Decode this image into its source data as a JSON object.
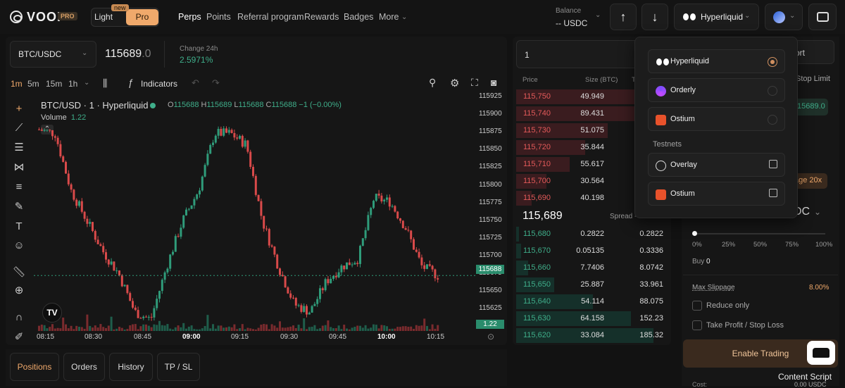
{
  "header": {
    "logo": "VOOI",
    "logo_badge": "PRO",
    "mode_light": "Light",
    "mode_pro": "Pro",
    "new_tag": "new",
    "nav": [
      "Perps",
      "Points",
      "Referral program",
      "Rewards",
      "Badges",
      "More"
    ],
    "balance_label": "Balance",
    "balance_value": "-- USDC",
    "network": "Hyperliquid"
  },
  "market": {
    "pair": "BTC/USDC",
    "price_main": "115689",
    "price_dec": ".0",
    "change_label": "Change 24h",
    "change_value": "2.5971%"
  },
  "toolbar": {
    "timeframes": [
      "1m",
      "5m",
      "15m",
      "1h"
    ],
    "indicators": "Indicators"
  },
  "chart": {
    "title": "BTC/USD · 1 · Hyperliquid",
    "o": "115688",
    "h": "115689",
    "l": "115688",
    "c": "115688",
    "change": "−1 (−0.00%)",
    "volume_label": "Volume",
    "volume_value": "1.22",
    "price_tag": "115688",
    "vol_tag": "1.22"
  },
  "chart_data": {
    "type": "candlestick",
    "title": "BTC/USD · 1 · Hyperliquid",
    "yticks": [
      "115925",
      "115900",
      "115875",
      "115850",
      "115825",
      "115800",
      "115775",
      "115750",
      "115725",
      "115700",
      "115675",
      "115650",
      "115625"
    ],
    "xticks": [
      "08:15",
      "08:30",
      "08:45",
      "09:00",
      "09:15",
      "09:30",
      "09:45",
      "10:00",
      "10:15"
    ],
    "close_series": [
      115880,
      115875,
      115800,
      115760,
      115720,
      115690,
      115640,
      115630,
      115700,
      115760,
      115800,
      115875,
      115875,
      115860,
      115760,
      115700,
      115650,
      115640,
      115680,
      115700,
      115710,
      115790,
      115785,
      115750,
      115700,
      115688
    ]
  },
  "orderbook": {
    "input_value": "1",
    "col_price": "Price",
    "col_size": "Size (BTC)",
    "col_total": "T",
    "asks": [
      {
        "p": "115,750",
        "s": "49.949",
        "w": 0.95
      },
      {
        "p": "115,740",
        "s": "89.431",
        "w": 0.9
      },
      {
        "p": "115,730",
        "s": "51.075",
        "w": 0.6
      },
      {
        "p": "115,720",
        "s": "35.844",
        "w": 0.45
      },
      {
        "p": "115,710",
        "s": "55.617",
        "w": 0.35
      },
      {
        "p": "115,700",
        "s": "30.564",
        "w": 0.2
      },
      {
        "p": "115,690",
        "s": "40.198",
        "w": 0.1
      }
    ],
    "mid": "115,689",
    "spread": "Spread -",
    "bids": [
      {
        "p": "115,680",
        "s": "0.2822",
        "t": "0.2822",
        "w": 0.02
      },
      {
        "p": "115,670",
        "s": "0.05135",
        "t": "0.3336",
        "w": 0.03
      },
      {
        "p": "115,660",
        "s": "7.7406",
        "t": "8.0742",
        "w": 0.08
      },
      {
        "p": "115,650",
        "s": "25.887",
        "t": "33.961",
        "w": 0.25
      },
      {
        "p": "115,640",
        "s": "54.114",
        "t": "88.075",
        "w": 0.5
      },
      {
        "p": "115,630",
        "s": "64.158",
        "t": "152.23",
        "w": 0.75
      },
      {
        "p": "115,620",
        "s": "33.084",
        "t": "185.32",
        "w": 0.9
      }
    ]
  },
  "order_form": {
    "side_right": "ort",
    "stop_limit": "Stop Limit",
    "price_pill": "15689.0",
    "leverage": "age 20x",
    "asset": "DC",
    "pct": [
      "0%",
      "25%",
      "50%",
      "75%",
      "100%"
    ],
    "buy_label": "Buy",
    "buy_value": "0",
    "max_slippage": "Max Slippage",
    "slippage_value": "8.00%",
    "reduce_only": "Reduce only",
    "tpsl": "Take Profit / Stop Loss",
    "enable": "Enable Trading",
    "cost": "Cost:",
    "cost_value": "0.00 USDC",
    "content_script": "Content Script"
  },
  "bottom_tabs": [
    "Positions",
    "Orders",
    "History",
    "TP / SL"
  ],
  "dropdown": {
    "items": [
      {
        "label": "Hyperliquid"
      },
      {
        "label": "Orderly"
      },
      {
        "label": "Ostium"
      }
    ],
    "testnets_label": "Testnets",
    "testnets": [
      {
        "label": "Overlay"
      },
      {
        "label": "Ostium"
      }
    ]
  }
}
